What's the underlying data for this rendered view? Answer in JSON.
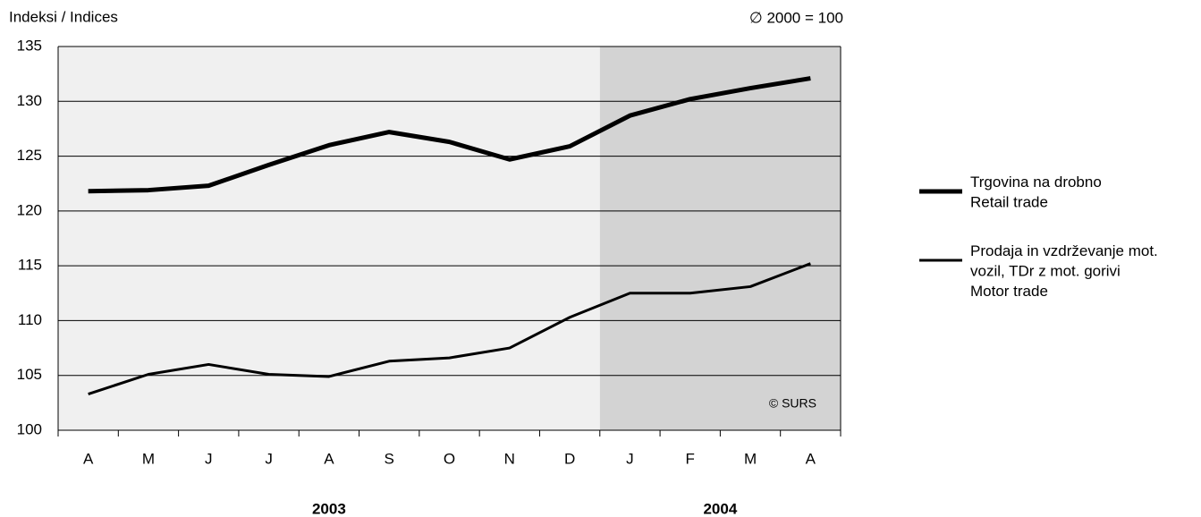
{
  "chart_data": {
    "type": "line",
    "y_label": "Indeksi / Indices",
    "note": "∅ 2000 = 100",
    "annotation": "© SURS",
    "categories": [
      "A",
      "M",
      "J",
      "J",
      "A",
      "S",
      "O",
      "N",
      "D",
      "J",
      "F",
      "M",
      "A"
    ],
    "groups": [
      {
        "label": "2003",
        "count": 9,
        "color": "#f0f0f0"
      },
      {
        "label": "2004",
        "count": 4,
        "color": "#d3d3d3"
      }
    ],
    "series": [
      {
        "name": "Trgovina na drobno\nRetail trade",
        "color": "#000000",
        "line_width": 5,
        "values": [
          121.8,
          121.9,
          122.3,
          124.2,
          126.0,
          127.2,
          126.3,
          124.7,
          125.9,
          128.7,
          130.2,
          131.2,
          132.1
        ]
      },
      {
        "name": "Prodaja in vzdrževanje mot.\nvozil, TDr z mot. gorivi\nMotor trade",
        "color": "#000000",
        "line_width": 3,
        "values": [
          103.3,
          105.1,
          106.0,
          105.1,
          104.9,
          106.3,
          106.6,
          107.5,
          110.3,
          112.5,
          112.5,
          113.1,
          115.2
        ]
      }
    ],
    "ylim": [
      100,
      135
    ],
    "yticks": [
      100,
      105,
      110,
      115,
      120,
      125,
      130,
      135
    ],
    "grid": true
  }
}
